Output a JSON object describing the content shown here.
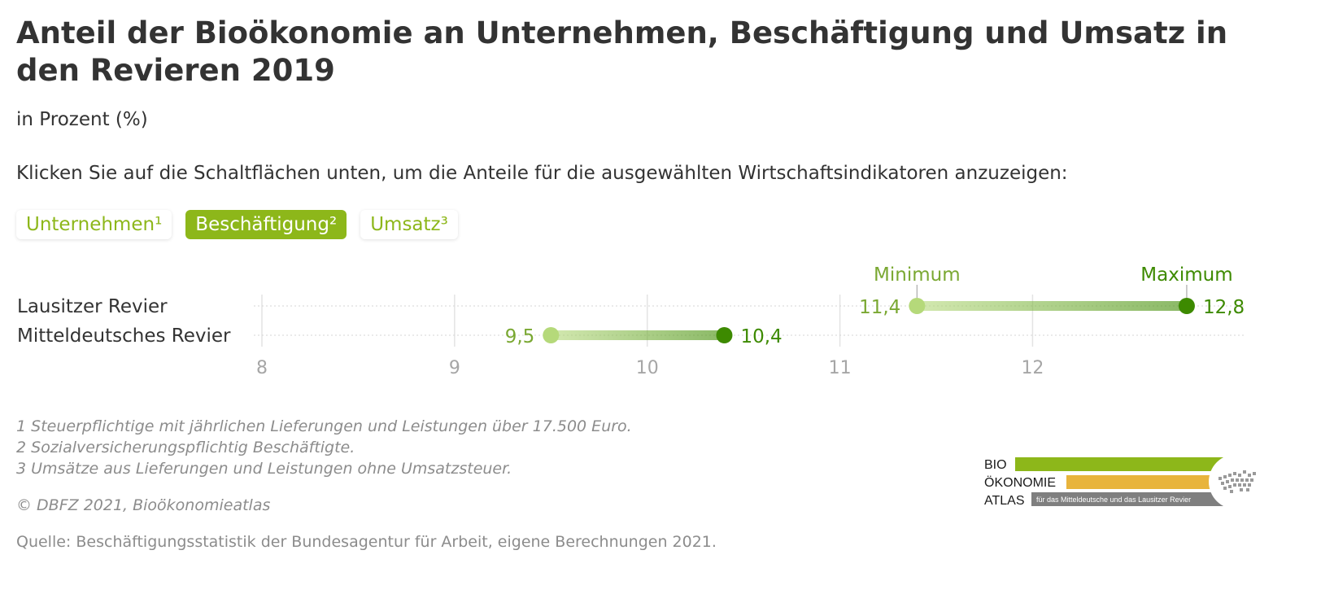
{
  "title": "Anteil der Bioökonomie an Unternehmen, Beschäftigung und Umsatz in den Revieren 2019",
  "subtitle": "in Prozent (%)",
  "instruction": "Klicken Sie auf die Schaltflächen unten, um die Anteile für die ausgewählten Wirtschaftsindikatoren anzuzeigen:",
  "buttons": [
    {
      "label": "Unternehmen¹",
      "active": false
    },
    {
      "label": "Beschäftigung²",
      "active": true
    },
    {
      "label": "Umsatz³",
      "active": false
    }
  ],
  "chart_data": {
    "type": "dumbbell",
    "categories": [
      "Lausitzer Revier",
      "Mitteldeutsches Revier"
    ],
    "series": [
      {
        "name": "Minimum",
        "values": [
          11.4,
          9.5
        ],
        "labels": [
          "11,4",
          "9,5"
        ],
        "color": "#b5d97a"
      },
      {
        "name": "Maximum",
        "values": [
          12.8,
          10.4
        ],
        "labels": [
          "12,8",
          "10,4"
        ],
        "color": "#3d8a00"
      }
    ],
    "x_ticks": [
      "8",
      "9",
      "10",
      "11",
      "12"
    ],
    "xlim": [
      8,
      13.1
    ],
    "grid": true
  },
  "footnotes": [
    "1 Steuerpflichtige mit jährlichen Lieferungen und Leistungen über 17.500 Euro.",
    "2 Sozialversicherungspflichtig Beschäftigte.",
    "3 Umsätze aus Lieferungen und Leistungen ohne Umsatzsteuer."
  ],
  "copyright": "© DBFZ 2021, Bioökonomieatlas",
  "source": "Quelle: Beschäftigungsstatistik der Bundesagentur für Arbeit, eigene Berechnungen 2021.",
  "logo": {
    "line1": "BIO",
    "line2": "ÖKONOMIE",
    "line3": "ATLAS",
    "tagline": "für das Mitteldeutsche und das Lausitzer Revier"
  },
  "colors": {
    "accent": "#8db71a",
    "min_point": "#b5d97a",
    "max_point": "#3d8a00",
    "label_min": "#7aa832",
    "label_max": "#3d8a00",
    "muted": "#8c8c8c",
    "logo_orange": "#e8b43c",
    "logo_gray": "#7f7f7f"
  }
}
